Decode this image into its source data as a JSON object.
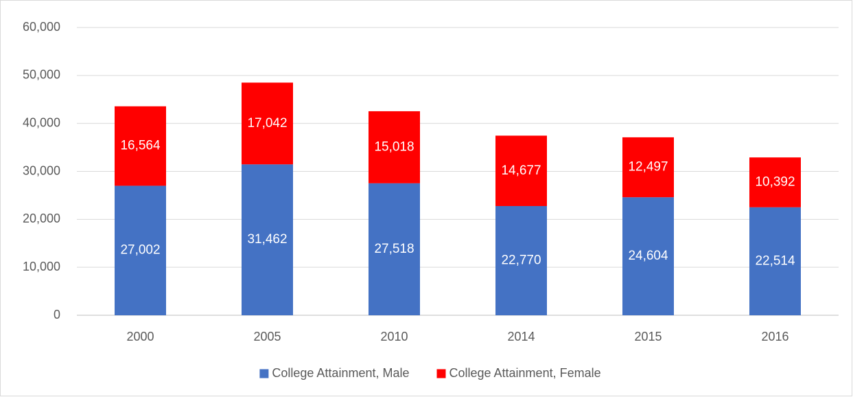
{
  "chart_data": {
    "type": "bar",
    "stacked": true,
    "categories": [
      "2000",
      "2005",
      "2010",
      "2014",
      "2015",
      "2016"
    ],
    "series": [
      {
        "name": "College Attainment, Male",
        "color": "#4472c4",
        "values": [
          27002,
          31462,
          27518,
          22770,
          24604,
          22514
        ],
        "value_labels": [
          "27,002",
          "31,462",
          "27,518",
          "22,770",
          "24,604",
          "22,514"
        ]
      },
      {
        "name": "College Attainment, Female",
        "color": "#ff0000",
        "values": [
          16564,
          17042,
          15018,
          14677,
          12497,
          10392
        ],
        "value_labels": [
          "16,564",
          "17,042",
          "15,018",
          "14,677",
          "12,497",
          "10,392"
        ]
      }
    ],
    "ylim": [
      0,
      60000
    ],
    "yticks": [
      0,
      {
        "value": 10000,
        "label": "10,000"
      },
      {
        "value": 20000,
        "label": "20,000"
      },
      {
        "value": 30000,
        "label": "30,000"
      },
      {
        "value": 40000,
        "label": "40,000"
      },
      {
        "value": 50000,
        "label": "50,000"
      },
      {
        "value": 60000,
        "label": "60,000"
      }
    ],
    "grid": true,
    "legend": "bottom"
  }
}
